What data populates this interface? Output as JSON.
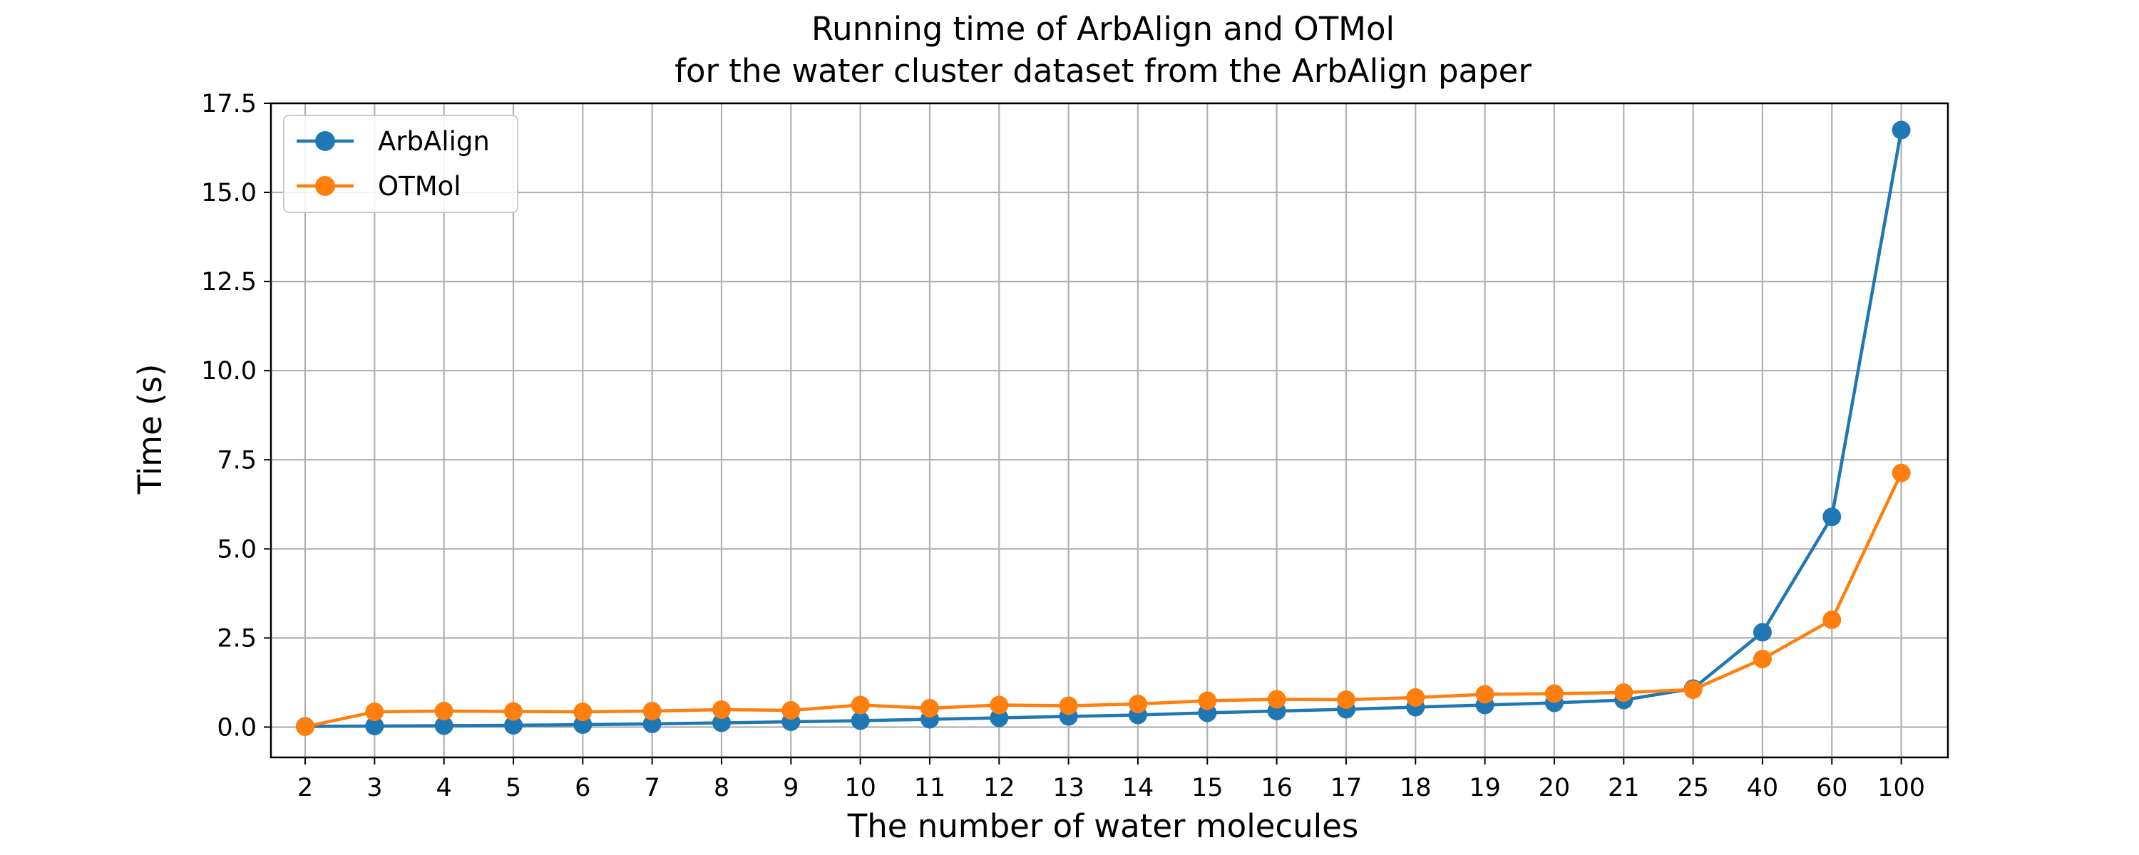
{
  "chart_data": {
    "type": "line",
    "title": "Running time of ArbAlign and OTMol",
    "subtitle": "for the water cluster dataset from the ArbAlign paper",
    "xlabel": "The number of water molecules",
    "ylabel": "Time (s)",
    "categories": [
      "2",
      "3",
      "4",
      "5",
      "6",
      "7",
      "8",
      "9",
      "10",
      "11",
      "12",
      "13",
      "14",
      "15",
      "16",
      "17",
      "18",
      "19",
      "20",
      "21",
      "25",
      "40",
      "60",
      "100"
    ],
    "ylim": [
      -0.85,
      17.5
    ],
    "yticks": [
      "0.0",
      "2.5",
      "5.0",
      "7.5",
      "10.0",
      "12.5",
      "15.0",
      "17.5"
    ],
    "grid": true,
    "legend_position": "upper-left",
    "series": [
      {
        "name": "ArbAlign",
        "color": "#1f77b4",
        "values": [
          0.02,
          0.03,
          0.04,
          0.05,
          0.07,
          0.09,
          0.12,
          0.15,
          0.18,
          0.22,
          0.26,
          0.3,
          0.34,
          0.4,
          0.45,
          0.5,
          0.56,
          0.62,
          0.68,
          0.76,
          1.08,
          2.66,
          5.9,
          16.75
        ]
      },
      {
        "name": "OTMol",
        "color": "#ff7f0e",
        "values": [
          0.01,
          0.43,
          0.45,
          0.44,
          0.43,
          0.45,
          0.49,
          0.47,
          0.62,
          0.53,
          0.62,
          0.6,
          0.65,
          0.74,
          0.78,
          0.77,
          0.83,
          0.92,
          0.94,
          0.97,
          1.05,
          1.91,
          3.01,
          7.13
        ]
      }
    ]
  }
}
